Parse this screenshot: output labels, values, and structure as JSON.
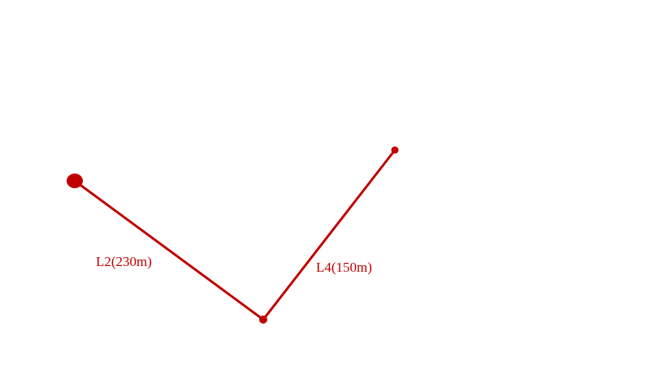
{
  "diagram": {
    "color": "#c00000",
    "segments": [
      {
        "label": "L2(230m)"
      },
      {
        "label": "L4(150m)"
      }
    ]
  }
}
